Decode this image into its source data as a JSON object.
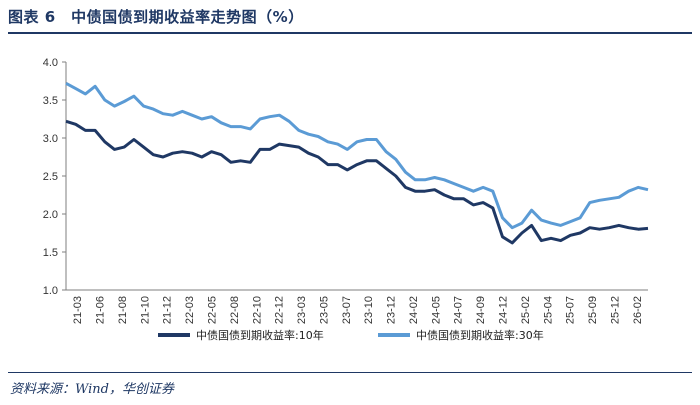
{
  "header": {
    "title": "图表 6　中债国债到期收益率走势图（%）"
  },
  "footer": {
    "source": "资料来源：Wind，华创证券"
  },
  "colors": {
    "series_10y": "#1F3864",
    "series_30y": "#5B9BD5",
    "accent": "#1F3864"
  },
  "chart_data": {
    "type": "line",
    "title": "中债国债到期收益率走势图（%）",
    "xlabel": "",
    "ylabel": "",
    "ylim": [
      1.0,
      4.0
    ],
    "yticks": [
      "1.0",
      "1.5",
      "2.0",
      "2.5",
      "3.0",
      "3.5",
      "4.0"
    ],
    "grid": false,
    "legend_position": "bottom",
    "x_ticks": [
      "21-03",
      "21-06",
      "21-08",
      "21-10",
      "21-12",
      "22-03",
      "22-05",
      "22-08",
      "22-10",
      "22-12",
      "23-03",
      "23-05",
      "23-07",
      "23-10",
      "23-12",
      "24-02",
      "24-05",
      "24-07",
      "24-09",
      "24-12",
      "25-02",
      "25-04",
      "25-07",
      "25-09",
      "25-12",
      "26-02"
    ],
    "x_range": [
      "2021-03",
      "2026-03"
    ],
    "series": [
      {
        "name": "中债国债到期收益率:10年",
        "x": [
          "2021-03",
          "2021-04",
          "2021-05",
          "2021-06",
          "2021-07",
          "2021-08",
          "2021-09",
          "2021-10",
          "2021-11",
          "2021-12",
          "2022-01",
          "2022-02",
          "2022-03",
          "2022-04",
          "2022-05",
          "2022-06",
          "2022-07",
          "2022-08",
          "2022-09",
          "2022-10",
          "2022-11",
          "2022-12",
          "2023-01",
          "2023-02",
          "2023-03",
          "2023-04",
          "2023-05",
          "2023-06",
          "2023-07",
          "2023-08",
          "2023-09",
          "2023-10",
          "2023-11",
          "2023-12",
          "2024-01",
          "2024-02",
          "2024-03",
          "2024-04",
          "2024-05",
          "2024-06",
          "2024-07",
          "2024-08",
          "2024-09",
          "2024-10",
          "2024-11",
          "2024-12",
          "2025-01",
          "2025-02",
          "2025-03",
          "2025-04",
          "2025-05",
          "2025-06",
          "2025-07",
          "2025-08",
          "2025-09",
          "2025-10",
          "2025-11",
          "2025-12",
          "2026-01",
          "2026-02",
          "2026-03"
        ],
        "values": [
          3.22,
          3.18,
          3.1,
          3.1,
          2.95,
          2.85,
          2.88,
          2.98,
          2.88,
          2.78,
          2.75,
          2.8,
          2.82,
          2.8,
          2.75,
          2.82,
          2.78,
          2.68,
          2.7,
          2.68,
          2.85,
          2.85,
          2.92,
          2.9,
          2.88,
          2.8,
          2.75,
          2.65,
          2.65,
          2.58,
          2.65,
          2.7,
          2.7,
          2.6,
          2.5,
          2.35,
          2.3,
          2.3,
          2.32,
          2.25,
          2.2,
          2.2,
          2.12,
          2.15,
          2.08,
          1.7,
          1.62,
          1.75,
          1.85,
          1.65,
          1.68,
          1.65,
          1.72,
          1.75,
          1.82,
          1.8,
          1.82,
          1.85,
          1.82,
          1.8,
          1.81
        ]
      },
      {
        "name": "中债国债到期收益率:30年",
        "x": [
          "2021-03",
          "2021-04",
          "2021-05",
          "2021-06",
          "2021-07",
          "2021-08",
          "2021-09",
          "2021-10",
          "2021-11",
          "2021-12",
          "2022-01",
          "2022-02",
          "2022-03",
          "2022-04",
          "2022-05",
          "2022-06",
          "2022-07",
          "2022-08",
          "2022-09",
          "2022-10",
          "2022-11",
          "2022-12",
          "2023-01",
          "2023-02",
          "2023-03",
          "2023-04",
          "2023-05",
          "2023-06",
          "2023-07",
          "2023-08",
          "2023-09",
          "2023-10",
          "2023-11",
          "2023-12",
          "2024-01",
          "2024-02",
          "2024-03",
          "2024-04",
          "2024-05",
          "2024-06",
          "2024-07",
          "2024-08",
          "2024-09",
          "2024-10",
          "2024-11",
          "2024-12",
          "2025-01",
          "2025-02",
          "2025-03",
          "2025-04",
          "2025-05",
          "2025-06",
          "2025-07",
          "2025-08",
          "2025-09",
          "2025-10",
          "2025-11",
          "2025-12",
          "2026-01",
          "2026-02",
          "2026-03"
        ],
        "values": [
          3.72,
          3.65,
          3.58,
          3.68,
          3.5,
          3.42,
          3.48,
          3.55,
          3.42,
          3.38,
          3.32,
          3.3,
          3.35,
          3.3,
          3.25,
          3.28,
          3.2,
          3.15,
          3.15,
          3.12,
          3.25,
          3.28,
          3.3,
          3.22,
          3.1,
          3.05,
          3.02,
          2.95,
          2.92,
          2.85,
          2.95,
          2.98,
          2.98,
          2.82,
          2.72,
          2.55,
          2.45,
          2.45,
          2.48,
          2.45,
          2.4,
          2.35,
          2.3,
          2.35,
          2.3,
          1.95,
          1.82,
          1.88,
          2.05,
          1.92,
          1.88,
          1.85,
          1.9,
          1.95,
          2.15,
          2.18,
          2.2,
          2.22,
          2.3,
          2.35,
          2.32
        ]
      }
    ]
  }
}
